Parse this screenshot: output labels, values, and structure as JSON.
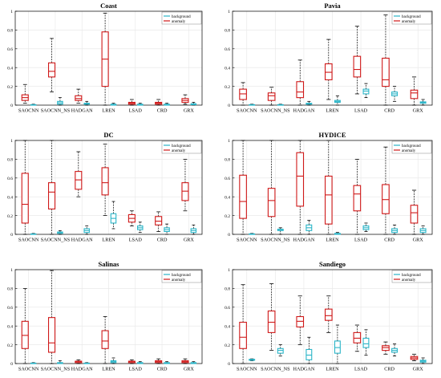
{
  "legend": {
    "background": "background",
    "anomaly": "anomaly"
  },
  "colors": {
    "background": "#2ab5c8",
    "anomaly": "#d01818",
    "box_fill": "#ffffff",
    "axis": "#000000",
    "grid": "#e6e6e6",
    "whisker": "#000000"
  },
  "chart_data": [
    {
      "type": "box",
      "title": "Coast",
      "categories": [
        "SAOCNN",
        "SAOCNN_NS",
        "HADGAN",
        "LREN",
        "LSAD",
        "CRD",
        "GRX"
      ],
      "ylim": [
        0,
        1
      ],
      "yticks": [
        0,
        0.2,
        0.4,
        0.6,
        0.8,
        1
      ],
      "grid": true,
      "legend_position": "top-right",
      "series": [
        {
          "name": "anomaly",
          "color": "#d01818",
          "boxes": [
            {
              "whislo": 0.02,
              "q1": 0.05,
              "med": 0.08,
              "q3": 0.11,
              "whishi": 0.22
            },
            {
              "whislo": 0.14,
              "q1": 0.3,
              "med": 0.36,
              "q3": 0.45,
              "whishi": 0.71
            },
            {
              "whislo": 0.02,
              "q1": 0.05,
              "med": 0.07,
              "q3": 0.1,
              "whishi": 0.17
            },
            {
              "whislo": 0.0,
              "q1": 0.2,
              "med": 0.49,
              "q3": 0.78,
              "whishi": 0.98
            },
            {
              "whislo": 0.0,
              "q1": 0.01,
              "med": 0.02,
              "q3": 0.03,
              "whishi": 0.06
            },
            {
              "whislo": 0.0,
              "q1": 0.01,
              "med": 0.02,
              "q3": 0.03,
              "whishi": 0.06
            },
            {
              "whislo": 0.01,
              "q1": 0.03,
              "med": 0.05,
              "q3": 0.07,
              "whishi": 0.11
            }
          ]
        },
        {
          "name": "background",
          "color": "#2ab5c8",
          "boxes": [
            {
              "whislo": 0.0,
              "q1": 0.0,
              "med": 0.0,
              "q3": 0.005,
              "whishi": 0.01
            },
            {
              "whislo": 0.0,
              "q1": 0.01,
              "med": 0.025,
              "q3": 0.04,
              "whishi": 0.08
            },
            {
              "whislo": 0.0,
              "q1": 0.01,
              "med": 0.015,
              "q3": 0.02,
              "whishi": 0.04
            },
            {
              "whislo": 0.0,
              "q1": 0.0,
              "med": 0.005,
              "q3": 0.01,
              "whishi": 0.02
            },
            {
              "whislo": 0.0,
              "q1": 0.0,
              "med": 0.005,
              "q3": 0.01,
              "whishi": 0.02
            },
            {
              "whislo": 0.0,
              "q1": 0.0,
              "med": 0.005,
              "q3": 0.01,
              "whishi": 0.02
            },
            {
              "whislo": 0.0,
              "q1": 0.005,
              "med": 0.01,
              "q3": 0.015,
              "whishi": 0.03
            }
          ]
        }
      ]
    },
    {
      "type": "box",
      "title": "Pavia",
      "categories": [
        "SAOCNN",
        "SAOCNN_NS",
        "HADGAN",
        "LREN",
        "LSAD",
        "CRD",
        "GRX"
      ],
      "ylim": [
        0,
        1
      ],
      "yticks": [
        0,
        0.2,
        0.4,
        0.6,
        0.8,
        1
      ],
      "grid": true,
      "legend_position": "top-right",
      "series": [
        {
          "name": "anomaly",
          "color": "#d01818",
          "boxes": [
            {
              "whislo": 0.0,
              "q1": 0.06,
              "med": 0.12,
              "q3": 0.17,
              "whishi": 0.24
            },
            {
              "whislo": 0.0,
              "q1": 0.05,
              "med": 0.1,
              "q3": 0.13,
              "whishi": 0.19
            },
            {
              "whislo": 0.0,
              "q1": 0.08,
              "med": 0.14,
              "q3": 0.25,
              "whishi": 0.48
            },
            {
              "whislo": 0.06,
              "q1": 0.27,
              "med": 0.35,
              "q3": 0.44,
              "whishi": 0.7
            },
            {
              "whislo": 0.12,
              "q1": 0.3,
              "med": 0.38,
              "q3": 0.52,
              "whishi": 0.84
            },
            {
              "whislo": 0.0,
              "q1": 0.2,
              "med": 0.27,
              "q3": 0.5,
              "whishi": 0.96
            },
            {
              "whislo": 0.0,
              "q1": 0.07,
              "med": 0.13,
              "q3": 0.16,
              "whishi": 0.3
            }
          ]
        },
        {
          "name": "background",
          "color": "#2ab5c8",
          "boxes": [
            {
              "whislo": 0.0,
              "q1": 0.0,
              "med": 0.0,
              "q3": 0.005,
              "whishi": 0.01
            },
            {
              "whislo": 0.0,
              "q1": 0.0,
              "med": 0.0,
              "q3": 0.005,
              "whishi": 0.01
            },
            {
              "whislo": 0.0,
              "q1": 0.01,
              "med": 0.015,
              "q3": 0.02,
              "whishi": 0.04
            },
            {
              "whislo": 0.0,
              "q1": 0.03,
              "med": 0.04,
              "q3": 0.05,
              "whishi": 0.1
            },
            {
              "whislo": 0.08,
              "q1": 0.12,
              "med": 0.15,
              "q3": 0.17,
              "whishi": 0.23
            },
            {
              "whislo": 0.04,
              "q1": 0.1,
              "med": 0.12,
              "q3": 0.14,
              "whishi": 0.2
            },
            {
              "whislo": 0.0,
              "q1": 0.02,
              "med": 0.03,
              "q3": 0.035,
              "whishi": 0.06
            }
          ]
        }
      ]
    },
    {
      "type": "box",
      "title": "DC",
      "categories": [
        "SAOCNN",
        "SAOCNN_NS",
        "HADGAN",
        "LREN",
        "LSAD",
        "CRD",
        "GRX"
      ],
      "ylim": [
        0,
        1
      ],
      "yticks": [
        0,
        0.2,
        0.4,
        0.6,
        0.8,
        1
      ],
      "grid": true,
      "legend_position": "top-right",
      "series": [
        {
          "name": "anomaly",
          "color": "#d01818",
          "boxes": [
            {
              "whislo": 0.0,
              "q1": 0.12,
              "med": 0.32,
              "q3": 0.65,
              "whishi": 1.0
            },
            {
              "whislo": 0.0,
              "q1": 0.27,
              "med": 0.45,
              "q3": 0.55,
              "whishi": 1.0
            },
            {
              "whislo": 0.4,
              "q1": 0.48,
              "med": 0.58,
              "q3": 0.67,
              "whishi": 0.88
            },
            {
              "whislo": 0.2,
              "q1": 0.42,
              "med": 0.55,
              "q3": 0.71,
              "whishi": 0.96
            },
            {
              "whislo": 0.09,
              "q1": 0.13,
              "med": 0.17,
              "q3": 0.21,
              "whishi": 0.25
            },
            {
              "whislo": 0.03,
              "q1": 0.1,
              "med": 0.14,
              "q3": 0.19,
              "whishi": 0.24
            },
            {
              "whislo": 0.25,
              "q1": 0.36,
              "med": 0.46,
              "q3": 0.55,
              "whishi": 0.8
            }
          ]
        },
        {
          "name": "background",
          "color": "#2ab5c8",
          "boxes": [
            {
              "whislo": 0.0,
              "q1": 0.0,
              "med": 0.0,
              "q3": 0.005,
              "whishi": 0.01
            },
            {
              "whislo": 0.0,
              "q1": 0.01,
              "med": 0.02,
              "q3": 0.025,
              "whishi": 0.04
            },
            {
              "whislo": 0.0,
              "q1": 0.02,
              "med": 0.04,
              "q3": 0.06,
              "whishi": 0.09
            },
            {
              "whislo": 0.06,
              "q1": 0.12,
              "med": 0.17,
              "q3": 0.22,
              "whishi": 0.35
            },
            {
              "whislo": 0.02,
              "q1": 0.05,
              "med": 0.07,
              "q3": 0.09,
              "whishi": 0.13
            },
            {
              "whislo": 0.0,
              "q1": 0.03,
              "med": 0.05,
              "q3": 0.07,
              "whishi": 0.11
            },
            {
              "whislo": 0.0,
              "q1": 0.02,
              "med": 0.04,
              "q3": 0.06,
              "whishi": 0.1
            }
          ]
        }
      ]
    },
    {
      "type": "box",
      "title": "HYDICE",
      "categories": [
        "SAOCNN",
        "SAOCNN_NS",
        "HADGAN",
        "LREN",
        "LSAD",
        "CRD",
        "GRX"
      ],
      "ylim": [
        0,
        1
      ],
      "yticks": [
        0,
        0.2,
        0.4,
        0.6,
        0.8,
        1
      ],
      "grid": true,
      "legend_position": "top-right",
      "series": [
        {
          "name": "anomaly",
          "color": "#d01818",
          "boxes": [
            {
              "whislo": 0.0,
              "q1": 0.17,
              "med": 0.35,
              "q3": 0.63,
              "whishi": 1.0
            },
            {
              "whislo": 0.0,
              "q1": 0.19,
              "med": 0.36,
              "q3": 0.49,
              "whishi": 1.0
            },
            {
              "whislo": 0.0,
              "q1": 0.3,
              "med": 0.62,
              "q3": 0.87,
              "whishi": 1.0
            },
            {
              "whislo": 0.0,
              "q1": 0.11,
              "med": 0.42,
              "q3": 0.62,
              "whishi": 1.0
            },
            {
              "whislo": 0.0,
              "q1": 0.25,
              "med": 0.43,
              "q3": 0.52,
              "whishi": 0.8
            },
            {
              "whislo": 0.0,
              "q1": 0.22,
              "med": 0.37,
              "q3": 0.53,
              "whishi": 0.93
            },
            {
              "whislo": 0.0,
              "q1": 0.12,
              "med": 0.23,
              "q3": 0.31,
              "whishi": 0.47
            }
          ]
        },
        {
          "name": "background",
          "color": "#2ab5c8",
          "boxes": [
            {
              "whislo": 0.0,
              "q1": 0.0,
              "med": 0.0,
              "q3": 0.005,
              "whishi": 0.01
            },
            {
              "whislo": 0.0,
              "q1": 0.04,
              "med": 0.05,
              "q3": 0.055,
              "whishi": 0.07
            },
            {
              "whislo": 0.0,
              "q1": 0.04,
              "med": 0.07,
              "q3": 0.1,
              "whishi": 0.15
            },
            {
              "whislo": 0.0,
              "q1": 0.0,
              "med": 0.005,
              "q3": 0.01,
              "whishi": 0.02
            },
            {
              "whislo": 0.03,
              "q1": 0.05,
              "med": 0.07,
              "q3": 0.09,
              "whishi": 0.12
            },
            {
              "whislo": 0.0,
              "q1": 0.02,
              "med": 0.04,
              "q3": 0.06,
              "whishi": 0.1
            },
            {
              "whislo": 0.0,
              "q1": 0.02,
              "med": 0.04,
              "q3": 0.06,
              "whishi": 0.09
            }
          ]
        }
      ]
    },
    {
      "type": "box",
      "title": "Salinas",
      "categories": [
        "SAOCNN",
        "SAOCNN_NS",
        "HADGAN",
        "LREN",
        "LSAD",
        "CRD",
        "GRX"
      ],
      "ylim": [
        0,
        1
      ],
      "yticks": [
        0,
        0.2,
        0.4,
        0.6,
        0.8,
        1
      ],
      "grid": true,
      "legend_position": "top-right",
      "series": [
        {
          "name": "anomaly",
          "color": "#d01818",
          "boxes": [
            {
              "whislo": 0.0,
              "q1": 0.16,
              "med": 0.3,
              "q3": 0.45,
              "whishi": 0.8
            },
            {
              "whislo": 0.0,
              "q1": 0.12,
              "med": 0.22,
              "q3": 0.49,
              "whishi": 0.99
            },
            {
              "whislo": 0.0,
              "q1": 0.01,
              "med": 0.02,
              "q3": 0.025,
              "whishi": 0.04
            },
            {
              "whislo": 0.0,
              "q1": 0.16,
              "med": 0.24,
              "q3": 0.35,
              "whishi": 0.5
            },
            {
              "whislo": 0.0,
              "q1": 0.01,
              "med": 0.02,
              "q3": 0.025,
              "whishi": 0.04
            },
            {
              "whislo": 0.0,
              "q1": 0.01,
              "med": 0.02,
              "q3": 0.03,
              "whishi": 0.05
            },
            {
              "whislo": 0.0,
              "q1": 0.01,
              "med": 0.02,
              "q3": 0.03,
              "whishi": 0.05
            }
          ]
        },
        {
          "name": "background",
          "color": "#2ab5c8",
          "boxes": [
            {
              "whislo": 0.0,
              "q1": 0.0,
              "med": 0.0,
              "q3": 0.005,
              "whishi": 0.01
            },
            {
              "whislo": 0.0,
              "q1": 0.0,
              "med": 0.005,
              "q3": 0.01,
              "whishi": 0.03
            },
            {
              "whislo": 0.0,
              "q1": 0.0,
              "med": 0.0,
              "q3": 0.005,
              "whishi": 0.01
            },
            {
              "whislo": 0.0,
              "q1": 0.01,
              "med": 0.02,
              "q3": 0.03,
              "whishi": 0.06
            },
            {
              "whislo": 0.0,
              "q1": 0.0,
              "med": 0.005,
              "q3": 0.01,
              "whishi": 0.02
            },
            {
              "whislo": 0.0,
              "q1": 0.0,
              "med": 0.005,
              "q3": 0.01,
              "whishi": 0.02
            },
            {
              "whislo": 0.0,
              "q1": 0.0,
              "med": 0.005,
              "q3": 0.01,
              "whishi": 0.02
            }
          ]
        }
      ]
    },
    {
      "type": "box",
      "title": "Sandiego",
      "categories": [
        "SAOCNN",
        "SAOCNN_NS",
        "HADGAN",
        "LREN",
        "LSAD",
        "CRD",
        "GRX"
      ],
      "ylim": [
        0,
        1
      ],
      "yticks": [
        0,
        0.2,
        0.4,
        0.6,
        0.8,
        1
      ],
      "grid": true,
      "legend_position": "top-right",
      "series": [
        {
          "name": "anomaly",
          "color": "#d01818",
          "boxes": [
            {
              "whislo": 0.0,
              "q1": 0.16,
              "med": 0.28,
              "q3": 0.44,
              "whishi": 0.84
            },
            {
              "whislo": 0.14,
              "q1": 0.33,
              "med": 0.44,
              "q3": 0.56,
              "whishi": 0.85
            },
            {
              "whislo": 0.2,
              "q1": 0.39,
              "med": 0.45,
              "q3": 0.5,
              "whishi": 0.72
            },
            {
              "whislo": 0.33,
              "q1": 0.46,
              "med": 0.51,
              "q3": 0.58,
              "whishi": 0.72
            },
            {
              "whislo": 0.13,
              "q1": 0.22,
              "med": 0.27,
              "q3": 0.33,
              "whishi": 0.41
            },
            {
              "whislo": 0.1,
              "q1": 0.14,
              "med": 0.17,
              "q3": 0.19,
              "whishi": 0.23
            },
            {
              "whislo": 0.03,
              "q1": 0.045,
              "med": 0.06,
              "q3": 0.075,
              "whishi": 0.1
            }
          ]
        },
        {
          "name": "background",
          "color": "#2ab5c8",
          "boxes": [
            {
              "whislo": 0.03,
              "q1": 0.035,
              "med": 0.04,
              "q3": 0.045,
              "whishi": 0.05
            },
            {
              "whislo": 0.08,
              "q1": 0.11,
              "med": 0.14,
              "q3": 0.16,
              "whishi": 0.2
            },
            {
              "whislo": 0.0,
              "q1": 0.04,
              "med": 0.09,
              "q3": 0.15,
              "whishi": 0.28
            },
            {
              "whislo": 0.0,
              "q1": 0.11,
              "med": 0.17,
              "q3": 0.24,
              "whishi": 0.41
            },
            {
              "whislo": 0.09,
              "q1": 0.17,
              "med": 0.21,
              "q3": 0.27,
              "whishi": 0.36
            },
            {
              "whislo": 0.08,
              "q1": 0.12,
              "med": 0.14,
              "q3": 0.16,
              "whishi": 0.21
            },
            {
              "whislo": 0.0,
              "q1": 0.015,
              "med": 0.025,
              "q3": 0.035,
              "whishi": 0.06
            }
          ]
        }
      ]
    }
  ]
}
